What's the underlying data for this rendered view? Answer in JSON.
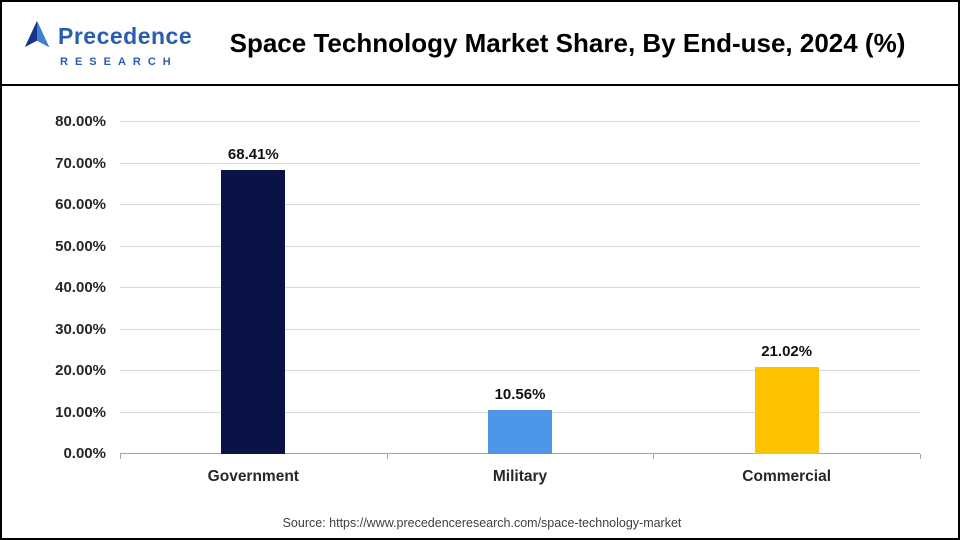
{
  "logo": {
    "name": "Precedence",
    "subtitle": "RESEARCH",
    "brand_color": "#2a5db0"
  },
  "title": "Space Technology Market Share, By End-use, 2024 (%)",
  "source": "Source: https://www.precedenceresearch.com/space-technology-market",
  "chart_data": {
    "type": "bar",
    "title": "Space Technology Market Share, By End-use, 2024 (%)",
    "categories": [
      "Government",
      "Military",
      "Commercial"
    ],
    "values": [
      68.41,
      10.56,
      21.02
    ],
    "value_labels": [
      "68.41%",
      "10.56%",
      "21.02%"
    ],
    "bar_colors": [
      "#0b1246",
      "#4d96e8",
      "#fdc300"
    ],
    "xlabel": "",
    "ylabel": "",
    "ylim": [
      0,
      80
    ],
    "ytick_values": [
      0,
      10,
      20,
      30,
      40,
      50,
      60,
      70,
      80
    ],
    "ytick_labels": [
      "0.00%",
      "10.00%",
      "20.00%",
      "30.00%",
      "40.00%",
      "50.00%",
      "60.00%",
      "70.00%",
      "80.00%"
    ],
    "grid": "horizontal",
    "legend": "none"
  }
}
